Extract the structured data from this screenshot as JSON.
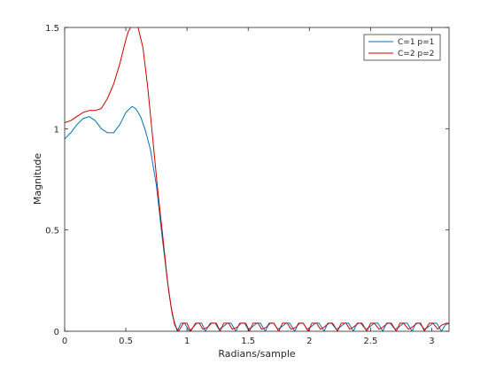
{
  "chart_data": {
    "type": "line",
    "title": "",
    "xlabel": "Radians/sample",
    "ylabel": "Magnitude",
    "xlim": [
      0,
      3.1416
    ],
    "ylim": [
      0,
      1.5
    ],
    "grid": false,
    "legend_position": "top-right",
    "xticks": [
      {
        "value": 0,
        "label": "0"
      },
      {
        "value": 0.5,
        "label": "0.5"
      },
      {
        "value": 1,
        "label": "1"
      },
      {
        "value": 1.5,
        "label": "1.5"
      },
      {
        "value": 2,
        "label": "2"
      },
      {
        "value": 2.5,
        "label": "2.5"
      },
      {
        "value": 3,
        "label": "3"
      }
    ],
    "yticks": [
      {
        "value": 0,
        "label": "0"
      },
      {
        "value": 0.5,
        "label": "0.5"
      },
      {
        "value": 1,
        "label": "1"
      },
      {
        "value": 1.5,
        "label": "1.5"
      }
    ],
    "series": [
      {
        "name": "C=1 p=1",
        "color": "#0072BD",
        "x": [
          0,
          0.05,
          0.1,
          0.15,
          0.2,
          0.25,
          0.3,
          0.35,
          0.4,
          0.45,
          0.5,
          0.55,
          0.58,
          0.62,
          0.66,
          0.7,
          0.75,
          0.8,
          0.85,
          0.88,
          0.92,
          0.95,
          0.98,
          1.02,
          1.05,
          1.08,
          1.12,
          1.15,
          1.19,
          1.23,
          1.26,
          1.29,
          1.33,
          1.36,
          1.4,
          1.43,
          1.47,
          1.5,
          1.53,
          1.57,
          1.6,
          1.64,
          1.67,
          1.71,
          1.74,
          1.77,
          1.81,
          1.84,
          1.88,
          1.91,
          1.95,
          1.98,
          2.01,
          2.05,
          2.08,
          2.12,
          2.15,
          2.18,
          2.22,
          2.25,
          2.29,
          2.32,
          2.36,
          2.39,
          2.42,
          2.46,
          2.49,
          2.53,
          2.56,
          2.6,
          2.63,
          2.66,
          2.7,
          2.73,
          2.77,
          2.8,
          2.84,
          2.87,
          2.9,
          2.94,
          2.97,
          3.01,
          3.04,
          3.08,
          3.11,
          3.1416
        ],
        "y": [
          0.95,
          0.98,
          1.02,
          1.05,
          1.06,
          1.04,
          1.0,
          0.98,
          0.98,
          1.02,
          1.08,
          1.11,
          1.1,
          1.06,
          0.99,
          0.9,
          0.72,
          0.45,
          0.2,
          0.08,
          0.0,
          0.04,
          0.04,
          0.0,
          0.02,
          0.04,
          0.04,
          0.0,
          0.04,
          0.04,
          0.01,
          0.02,
          0.04,
          0.04,
          0.0,
          0.04,
          0.04,
          0.01,
          0.02,
          0.04,
          0.04,
          0.0,
          0.04,
          0.04,
          0.01,
          0.02,
          0.04,
          0.04,
          0.0,
          0.04,
          0.04,
          0.01,
          0.02,
          0.04,
          0.04,
          0.0,
          0.04,
          0.04,
          0.01,
          0.02,
          0.04,
          0.04,
          0.0,
          0.04,
          0.04,
          0.01,
          0.02,
          0.04,
          0.04,
          0.0,
          0.04,
          0.04,
          0.01,
          0.02,
          0.04,
          0.04,
          0.0,
          0.04,
          0.04,
          0.01,
          0.02,
          0.04,
          0.04,
          0.0,
          0.03,
          0.04
        ]
      },
      {
        "name": "C=2 p=2",
        "color": "#D00000",
        "x": [
          0,
          0.05,
          0.1,
          0.15,
          0.2,
          0.25,
          0.3,
          0.35,
          0.4,
          0.45,
          0.5,
          0.52,
          0.54,
          0.56,
          0.58,
          0.6,
          0.64,
          0.68,
          0.72,
          0.76,
          0.8,
          0.84,
          0.87,
          0.9,
          0.93,
          0.97,
          1.0,
          1.03,
          1.07,
          1.1,
          1.13,
          1.17,
          1.2,
          1.24,
          1.27,
          1.3,
          1.34,
          1.37,
          1.41,
          1.44,
          1.48,
          1.51,
          1.54,
          1.58,
          1.61,
          1.65,
          1.68,
          1.71,
          1.75,
          1.78,
          1.82,
          1.85,
          1.89,
          1.92,
          1.95,
          1.99,
          2.02,
          2.06,
          2.09,
          2.12,
          2.16,
          2.19,
          2.23,
          2.26,
          2.3,
          2.33,
          2.36,
          2.4,
          2.43,
          2.47,
          2.5,
          2.53,
          2.57,
          2.6,
          2.64,
          2.67,
          2.71,
          2.74,
          2.77,
          2.81,
          2.84,
          2.88,
          2.91,
          2.94,
          2.98,
          3.01,
          3.05,
          3.08,
          3.12,
          3.1416
        ],
        "y": [
          1.03,
          1.04,
          1.06,
          1.08,
          1.09,
          1.09,
          1.1,
          1.15,
          1.22,
          1.32,
          1.44,
          1.48,
          1.5,
          1.52,
          1.52,
          1.5,
          1.4,
          1.2,
          0.95,
          0.7,
          0.48,
          0.25,
          0.12,
          0.03,
          0.0,
          0.04,
          0.04,
          0.0,
          0.04,
          0.04,
          0.01,
          0.02,
          0.04,
          0.04,
          0.0,
          0.04,
          0.04,
          0.01,
          0.02,
          0.04,
          0.04,
          0.0,
          0.04,
          0.04,
          0.01,
          0.02,
          0.04,
          0.04,
          0.0,
          0.04,
          0.04,
          0.01,
          0.02,
          0.04,
          0.04,
          0.0,
          0.04,
          0.04,
          0.01,
          0.02,
          0.04,
          0.04,
          0.0,
          0.04,
          0.04,
          0.01,
          0.02,
          0.04,
          0.04,
          0.0,
          0.04,
          0.04,
          0.01,
          0.02,
          0.04,
          0.04,
          0.0,
          0.04,
          0.04,
          0.01,
          0.02,
          0.04,
          0.04,
          0.0,
          0.04,
          0.04,
          0.01,
          0.03,
          0.04,
          0.04
        ]
      }
    ]
  }
}
